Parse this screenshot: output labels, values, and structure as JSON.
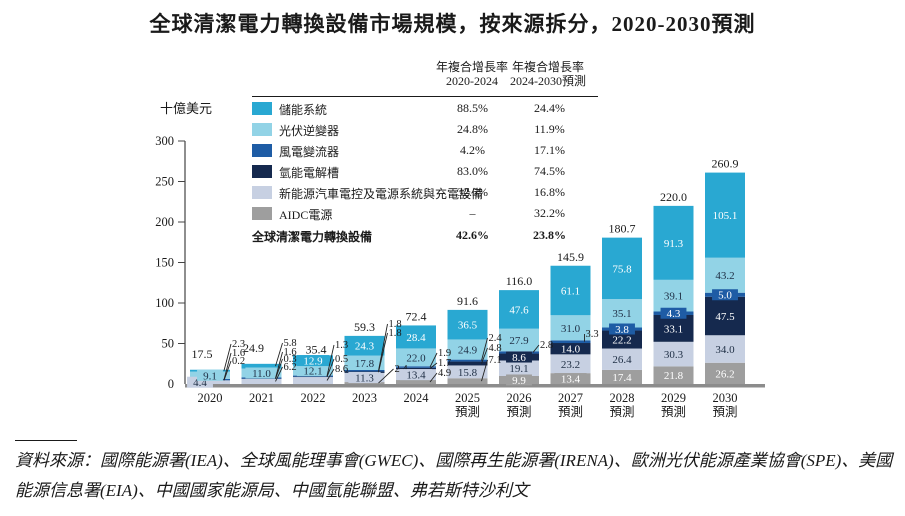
{
  "title": "全球清潔電力轉換設備市場規模，按來源拆分，2020-2030預測",
  "y_axis_unit": "十億美元",
  "legend": {
    "header1_line1": "年複合增長率",
    "header1_line2": "2020-2024",
    "header2_line1": "年複合增長率",
    "header2_line2": "2024-2030預測",
    "items": [
      {
        "key": "storage",
        "label": "儲能系統",
        "color": "#29a8d2",
        "cagr_2020_2024": "88.5%",
        "cagr_2024_2030": "24.4%"
      },
      {
        "key": "pv",
        "label": "光伏逆變器",
        "color": "#92d3e6",
        "cagr_2020_2024": "24.8%",
        "cagr_2024_2030": "11.9%"
      },
      {
        "key": "wind",
        "label": "風電變流器",
        "color": "#1e5ca5",
        "cagr_2020_2024": "4.2%",
        "cagr_2024_2030": "17.1%"
      },
      {
        "key": "hydrogen",
        "label": "氫能電解槽",
        "color": "#15294e",
        "cagr_2020_2024": "83.0%",
        "cagr_2024_2030": "74.5%"
      },
      {
        "key": "ev",
        "label": "新能源汽車電控及電源系統與充電設備",
        "color": "#c7d0e2",
        "cagr_2020_2024": "32.5%",
        "cagr_2024_2030": "16.8%"
      },
      {
        "key": "aidc",
        "label": "AIDC電源",
        "color": "#9e9e9e",
        "cagr_2020_2024": "–",
        "cagr_2024_2030": "32.2%"
      }
    ],
    "total_row": {
      "label": "全球清潔電力轉換設備",
      "cagr_2020_2024": "42.6%",
      "cagr_2024_2030": "23.8%"
    }
  },
  "chart_data": {
    "type": "bar",
    "stacked": true,
    "title": "全球清潔電力轉換設備市場規模，按來源拆分，2020-2030預測",
    "ylabel": "十億美元",
    "ylim": [
      0,
      300
    ],
    "yticks": [
      "0",
      "50",
      "100",
      "150",
      "200",
      "250",
      "300"
    ],
    "categories": [
      {
        "label": "2020",
        "suffix": ""
      },
      {
        "label": "2021",
        "suffix": ""
      },
      {
        "label": "2022",
        "suffix": ""
      },
      {
        "label": "2023",
        "suffix": ""
      },
      {
        "label": "2024",
        "suffix": ""
      },
      {
        "label": "2025",
        "suffix": "預測"
      },
      {
        "label": "2026",
        "suffix": "預測"
      },
      {
        "label": "2027",
        "suffix": "預測"
      },
      {
        "label": "2028",
        "suffix": "預測"
      },
      {
        "label": "2029",
        "suffix": "預測"
      },
      {
        "label": "2030",
        "suffix": "預測"
      }
    ],
    "series": [
      {
        "key": "storage",
        "name": "儲能系統",
        "color": "#29a8d2",
        "values": [
          "2.3",
          "5.8",
          "12.9",
          "24.3",
          "28.4",
          "36.5",
          "47.6",
          "61.1",
          "75.8",
          "91.3",
          "105.1"
        ]
      },
      {
        "key": "pv",
        "name": "光伏逆變器",
        "color": "#92d3e6",
        "values": [
          "9.1",
          "11.0",
          "12.1",
          "17.8",
          "22.0",
          "24.9",
          "27.9",
          "31.0",
          "35.1",
          "39.1",
          "43.2"
        ]
      },
      {
        "key": "wind",
        "name": "風電變流器",
        "color": "#1e5ca5",
        "values": [
          "1.6",
          "1.6",
          "1.3",
          "1.8",
          "1.9",
          "2.4",
          "2.8",
          "3.3",
          "3.8",
          "4.3",
          "5.0"
        ]
      },
      {
        "key": "hydrogen",
        "name": "氫能電解槽",
        "color": "#15294e",
        "values": [
          "0.2",
          "0.3",
          "0.5",
          "1.8",
          "1.7",
          "4.8",
          "8.6",
          "14.0",
          "22.2",
          "33.1",
          "47.5"
        ]
      },
      {
        "key": "ev",
        "name": "新能源汽車電控及電源系統與充電設備",
        "color": "#c7d0e2",
        "values": [
          "4.4",
          "6.2",
          "8.6",
          "11.3",
          "13.4",
          "15.8",
          "19.1",
          "23.2",
          "26.4",
          "30.3",
          "34.0"
        ]
      },
      {
        "key": "aidc",
        "name": "AIDC電源",
        "color": "#9e9e9e",
        "values": [
          "",
          "",
          "",
          "2.4",
          "4.9",
          "7.1",
          "9.9",
          "13.4",
          "17.4",
          "21.8",
          "26.2"
        ]
      }
    ],
    "totals": [
      "17.5",
      "24.9",
      "35.4",
      "59.3",
      "72.4",
      "91.6",
      "116.0",
      "145.9",
      "180.7",
      "220.0",
      "260.9"
    ],
    "legend_position": "upper-left-table",
    "grid": false,
    "colors": {
      "axis": "#444444",
      "baseline": "#8c8c8c",
      "label_dark": "#1f2f45",
      "label_light": "#ffffff"
    }
  },
  "footer": {
    "text": "資料來源：國際能源署(IEA)、全球風能理事會(GWEC)、國際再生能源署(IRENA)、歐洲光伏能源產業協會(SPE)、美國能源信息署(EIA)、中國國家能源局、中國氫能聯盟、弗若斯特沙利文"
  }
}
